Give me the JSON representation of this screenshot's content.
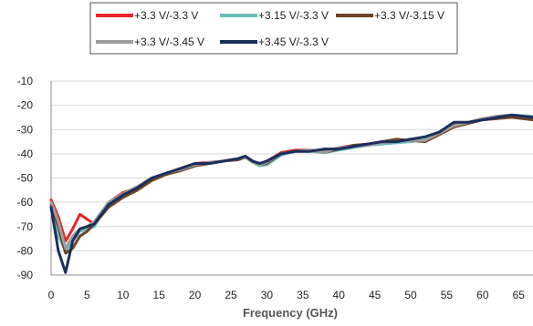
{
  "chart_data": {
    "type": "line",
    "title": "",
    "xlabel": "Frequency (GHz)",
    "ylabel": "",
    "xlim": [
      0,
      67
    ],
    "ylim": [
      -90,
      -10
    ],
    "xticks": [
      0,
      5,
      10,
      15,
      20,
      25,
      30,
      35,
      40,
      45,
      50,
      55,
      60,
      65
    ],
    "yticks": [
      -10,
      -20,
      -30,
      -40,
      -50,
      -60,
      -70,
      -80,
      -90
    ],
    "grid": "horizontal",
    "legend_position": "top",
    "series": [
      {
        "name": "+3.3 V/-3.3 V",
        "color": "#e8262b",
        "x": [
          0,
          1,
          2,
          3,
          4,
          5,
          6,
          8,
          10,
          12,
          14,
          16,
          18,
          20,
          22,
          24,
          26,
          27,
          28,
          29,
          30,
          32,
          34,
          36,
          38,
          40,
          42,
          44,
          46,
          48,
          50,
          52,
          54,
          56,
          58,
          60,
          62,
          64,
          67
        ],
        "y": [
          -59,
          -66,
          -76,
          -71,
          -65,
          -67,
          -69,
          -60,
          -56,
          -54,
          -50,
          -48,
          -46,
          -44,
          -43.5,
          -43,
          -42,
          -41,
          -43,
          -44,
          -43,
          -39.5,
          -38.5,
          -38.5,
          -39,
          -37.5,
          -36.5,
          -36,
          -35.5,
          -35,
          -34,
          -34,
          -31,
          -28,
          -27,
          -25.5,
          -25,
          -24.5,
          -25
        ]
      },
      {
        "name": "+3.15 V/-3.3 V",
        "color": "#6cbfbd",
        "x": [
          0,
          1,
          2,
          3,
          4,
          5,
          6,
          8,
          10,
          12,
          14,
          16,
          18,
          20,
          22,
          24,
          26,
          27,
          28,
          29,
          30,
          32,
          34,
          36,
          38,
          40,
          42,
          44,
          46,
          48,
          50,
          52,
          54,
          56,
          58,
          60,
          62,
          64,
          67
        ],
        "y": [
          -63,
          -74,
          -80,
          -76,
          -72,
          -71,
          -70,
          -60,
          -57,
          -54,
          -50,
          -48,
          -46.5,
          -44,
          -44,
          -43,
          -42,
          -41,
          -43.5,
          -45,
          -44.5,
          -40.5,
          -39,
          -39,
          -39.5,
          -38.5,
          -37.5,
          -36.5,
          -36,
          -35.5,
          -35,
          -34,
          -31.5,
          -28.5,
          -27,
          -25.5,
          -25,
          -24,
          -24.5
        ]
      },
      {
        "name": "+3.3 V/-3.15 V",
        "color": "#6b4326",
        "x": [
          0,
          1,
          2,
          3,
          4,
          5,
          6,
          8,
          10,
          12,
          14,
          16,
          18,
          20,
          22,
          24,
          26,
          27,
          28,
          29,
          30,
          32,
          34,
          36,
          38,
          40,
          42,
          44,
          46,
          48,
          50,
          52,
          54,
          56,
          58,
          60,
          62,
          64,
          67
        ],
        "y": [
          -61,
          -70,
          -81,
          -79,
          -74,
          -72,
          -69,
          -62,
          -58,
          -55,
          -51,
          -48.5,
          -47,
          -45,
          -44,
          -43,
          -42.5,
          -41.5,
          -43,
          -44.5,
          -44,
          -40,
          -39,
          -38.5,
          -39.5,
          -38,
          -36.5,
          -36,
          -35,
          -34,
          -34.5,
          -35,
          -32,
          -29,
          -27.5,
          -26,
          -25.5,
          -25,
          -26
        ]
      },
      {
        "name": "+3.3 V/-3.45 V",
        "color": "#9c9c9c",
        "x": [
          0,
          1,
          2,
          3,
          4,
          5,
          6,
          8,
          10,
          12,
          14,
          16,
          18,
          20,
          22,
          24,
          26,
          27,
          28,
          29,
          30,
          32,
          34,
          36,
          38,
          40,
          42,
          44,
          46,
          48,
          50,
          52,
          54,
          56,
          58,
          60,
          62,
          64,
          67
        ],
        "y": [
          -60,
          -68,
          -79,
          -74,
          -71,
          -70,
          -68,
          -60,
          -56.5,
          -53.5,
          -50,
          -48,
          -46.5,
          -44.5,
          -43.5,
          -43,
          -42,
          -41.5,
          -43.5,
          -44.5,
          -43.5,
          -40,
          -39,
          -38.5,
          -39.5,
          -37.5,
          -37,
          -36.5,
          -35.5,
          -35,
          -34.5,
          -34.5,
          -31.5,
          -28.5,
          -27,
          -25.5,
          -24.5,
          -24,
          -25
        ]
      },
      {
        "name": "+3.45 V/-3.3 V",
        "color": "#1b2f5e",
        "x": [
          0,
          1,
          2,
          3,
          4,
          5,
          6,
          8,
          10,
          12,
          14,
          16,
          18,
          20,
          22,
          24,
          26,
          27,
          28,
          29,
          30,
          32,
          34,
          36,
          38,
          40,
          42,
          44,
          46,
          48,
          50,
          52,
          54,
          56,
          58,
          60,
          62,
          64,
          67
        ],
        "y": [
          -62,
          -80,
          -89,
          -76,
          -71,
          -70,
          -69,
          -61,
          -57,
          -54,
          -50,
          -48,
          -46,
          -44,
          -44,
          -43,
          -42,
          -41,
          -43,
          -44,
          -43,
          -40,
          -39,
          -39,
          -38,
          -38,
          -37,
          -36,
          -35,
          -35,
          -34,
          -33,
          -31,
          -27,
          -27,
          -26,
          -25,
          -24,
          -25
        ]
      }
    ]
  }
}
